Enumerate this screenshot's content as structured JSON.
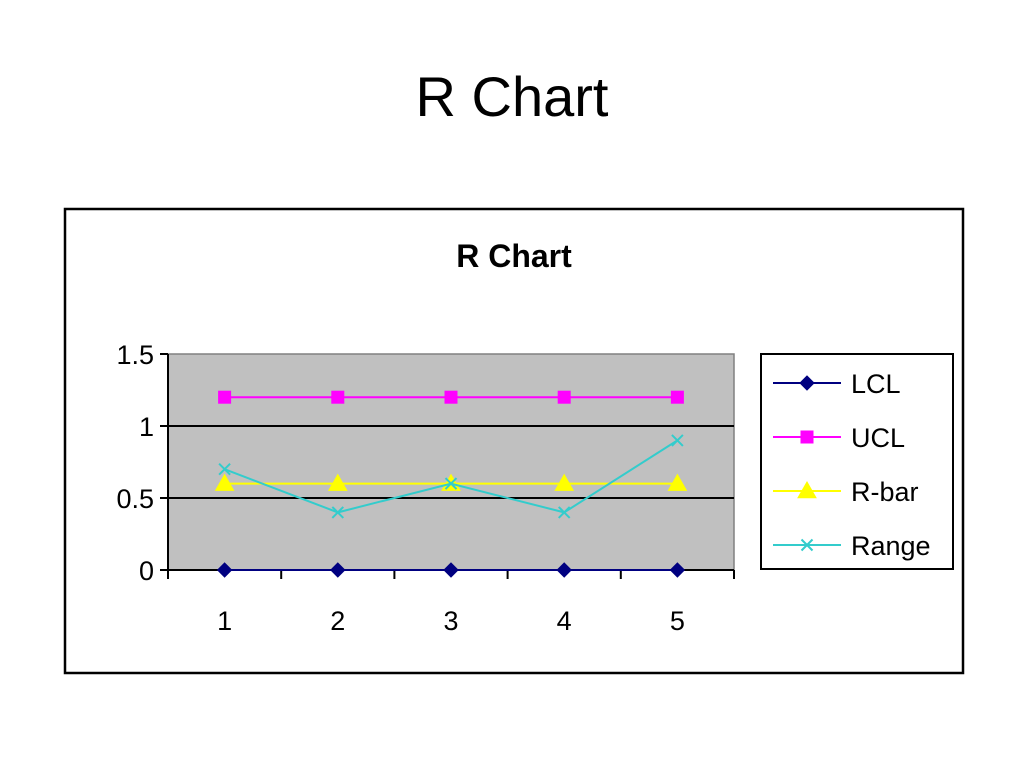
{
  "slide": {
    "title": "R Chart"
  },
  "chart_data": {
    "type": "line",
    "title": "R Chart",
    "xlabel": "",
    "ylabel": "",
    "categories": [
      "1",
      "2",
      "3",
      "4",
      "5"
    ],
    "ylim": [
      0,
      1.5
    ],
    "yticks": [
      "0",
      "0.5",
      "1",
      "1.5"
    ],
    "ytick_values": [
      0,
      0.5,
      1,
      1.5
    ],
    "grid": true,
    "plot_background": "#C0C0C0",
    "legend": "right",
    "series": [
      {
        "name": "LCL",
        "values": [
          0,
          0,
          0,
          0,
          0
        ],
        "color": "#000080",
        "marker": "diamond"
      },
      {
        "name": "UCL",
        "values": [
          1.2,
          1.2,
          1.2,
          1.2,
          1.2
        ],
        "color": "#FF00FF",
        "marker": "square"
      },
      {
        "name": "R-bar",
        "values": [
          0.6,
          0.6,
          0.6,
          0.6,
          0.6
        ],
        "color": "#FFFF00",
        "marker": "triangle"
      },
      {
        "name": "Range",
        "values": [
          0.7,
          0.4,
          0.6,
          0.4,
          0.9
        ],
        "color": "#33CCCC",
        "marker": "x"
      }
    ]
  }
}
